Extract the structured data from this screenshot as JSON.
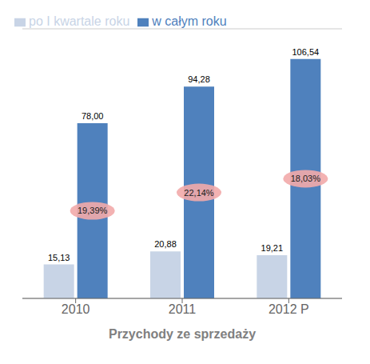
{
  "chart_data": {
    "type": "bar",
    "xlabel": "Przychody ze sprzedaży",
    "categories": [
      "2010",
      "2011",
      "2012 P"
    ],
    "series": [
      {
        "name": "po I kwartale roku",
        "color": "#c8d4e6",
        "values": [
          15.13,
          20.88,
          19.21
        ],
        "value_labels": [
          "15,13",
          "20,88",
          "19,21"
        ]
      },
      {
        "name": "w całym roku",
        "color": "#4f81bd",
        "values": [
          78.0,
          94.28,
          106.54
        ],
        "value_labels": [
          "78,00",
          "94,28",
          "106,54"
        ]
      }
    ],
    "annotations": [
      "19,39%",
      "22,14%",
      "18,03%"
    ],
    "ylim": [
      0,
      120
    ],
    "yticks": [
      0,
      20,
      40,
      60,
      80,
      100,
      120
    ],
    "grid": true,
    "legend": "upper left",
    "data_labels": true,
    "tick_labels": "x"
  }
}
